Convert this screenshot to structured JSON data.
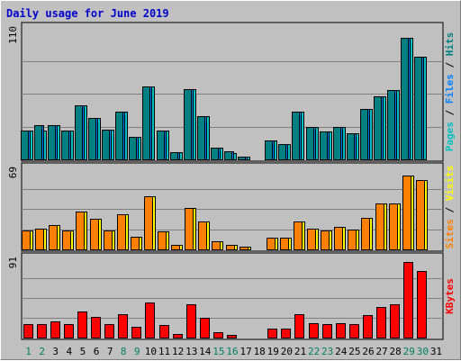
{
  "chart_data": {
    "title": "Daily usage for June 2019",
    "type": "bar",
    "days": [
      "1",
      "2",
      "3",
      "4",
      "5",
      "6",
      "7",
      "8",
      "9",
      "10",
      "11",
      "12",
      "13",
      "14",
      "15",
      "16",
      "17",
      "18",
      "19",
      "20",
      "21",
      "22",
      "23",
      "24",
      "25",
      "26",
      "27",
      "28",
      "29",
      "30",
      "31"
    ],
    "weekend_days": [
      "1",
      "2",
      "8",
      "9",
      "15",
      "16",
      "22",
      "23",
      "29",
      "30"
    ],
    "panels": [
      {
        "id": "hits-files-pages",
        "ymax_label": "110",
        "ymax": 110,
        "side_label_parts": [
          {
            "text": "Pages",
            "color": "#00c0c0"
          },
          {
            "text": " / ",
            "color": "#000000"
          },
          {
            "text": "Files",
            "color": "#0080ff"
          },
          {
            "text": " / ",
            "color": "#000000"
          },
          {
            "text": "Hits",
            "color": "#008080"
          }
        ],
        "series": [
          {
            "color": "#00c0c0",
            "values": [
              24,
              24,
              29,
              24,
              45,
              35,
              25,
              40,
              19,
              61,
              24,
              6,
              59,
              36,
              10,
              5,
              2,
              0,
              16,
              13,
              40,
              27,
              23,
              27,
              22,
              42,
              53,
              58,
              102,
              86,
              0
            ]
          },
          {
            "color": "#0080ff",
            "values": [
              24,
              29,
              29,
              24,
              45,
              35,
              25,
              40,
              19,
              61,
              24,
              6,
              59,
              36,
              10,
              7,
              2,
              0,
              16,
              13,
              40,
              27,
              23,
              27,
              22,
              42,
              53,
              58,
              102,
              86,
              0
            ]
          },
          {
            "color": "#008080",
            "values": [
              24,
              29,
              29,
              24,
              45,
              35,
              25,
              40,
              19,
              61,
              24,
              6,
              59,
              36,
              10,
              7,
              2,
              0,
              16,
              13,
              40,
              27,
              23,
              27,
              22,
              42,
              53,
              58,
              102,
              86,
              0
            ]
          }
        ]
      },
      {
        "id": "visits-sites",
        "ymax_label": "69",
        "ymax": 69,
        "side_label_parts": [
          {
            "text": "Sites",
            "color": "#ff8000"
          },
          {
            "text": " / ",
            "color": "#000000"
          },
          {
            "text": "Visits",
            "color": "#ffff00"
          }
        ],
        "series": [
          {
            "color": "#ffff00",
            "values": [
              16,
              18,
              21,
              16,
              32,
              26,
              16,
              30,
              11,
              45,
              15,
              4,
              35,
              24,
              7,
              4,
              2,
              0,
              10,
              10,
              24,
              18,
              16,
              19,
              17,
              27,
              39,
              39,
              63,
              59,
              0
            ]
          },
          {
            "color": "#ff8000",
            "values": [
              16,
              18,
              21,
              16,
              32,
              26,
              16,
              30,
              11,
              45,
              15,
              4,
              35,
              24,
              7,
              4,
              2,
              0,
              10,
              10,
              24,
              18,
              16,
              19,
              17,
              27,
              39,
              39,
              63,
              59,
              0
            ]
          }
        ]
      },
      {
        "id": "kbytes",
        "ymax_label": "91",
        "ymax": 91,
        "side_label_parts": [
          {
            "text": "KBytes",
            "color": "#ff0000"
          }
        ],
        "series": [
          {
            "color": "#ff0000",
            "values": [
              15,
              15,
              19,
              15,
              30,
              24,
              15,
              27,
              12,
              40,
              14,
              4,
              38,
              23,
              6,
              3,
              0,
              0,
              10,
              10,
              27,
              17,
              15,
              17,
              15,
              26,
              35,
              38,
              87,
              77,
              0
            ]
          }
        ]
      }
    ]
  },
  "colors": {
    "background": "#c0c0c0",
    "title": "#0000cc",
    "grid": "#808080",
    "weekday_label": "#000000",
    "weekend_label": "#00805c"
  }
}
